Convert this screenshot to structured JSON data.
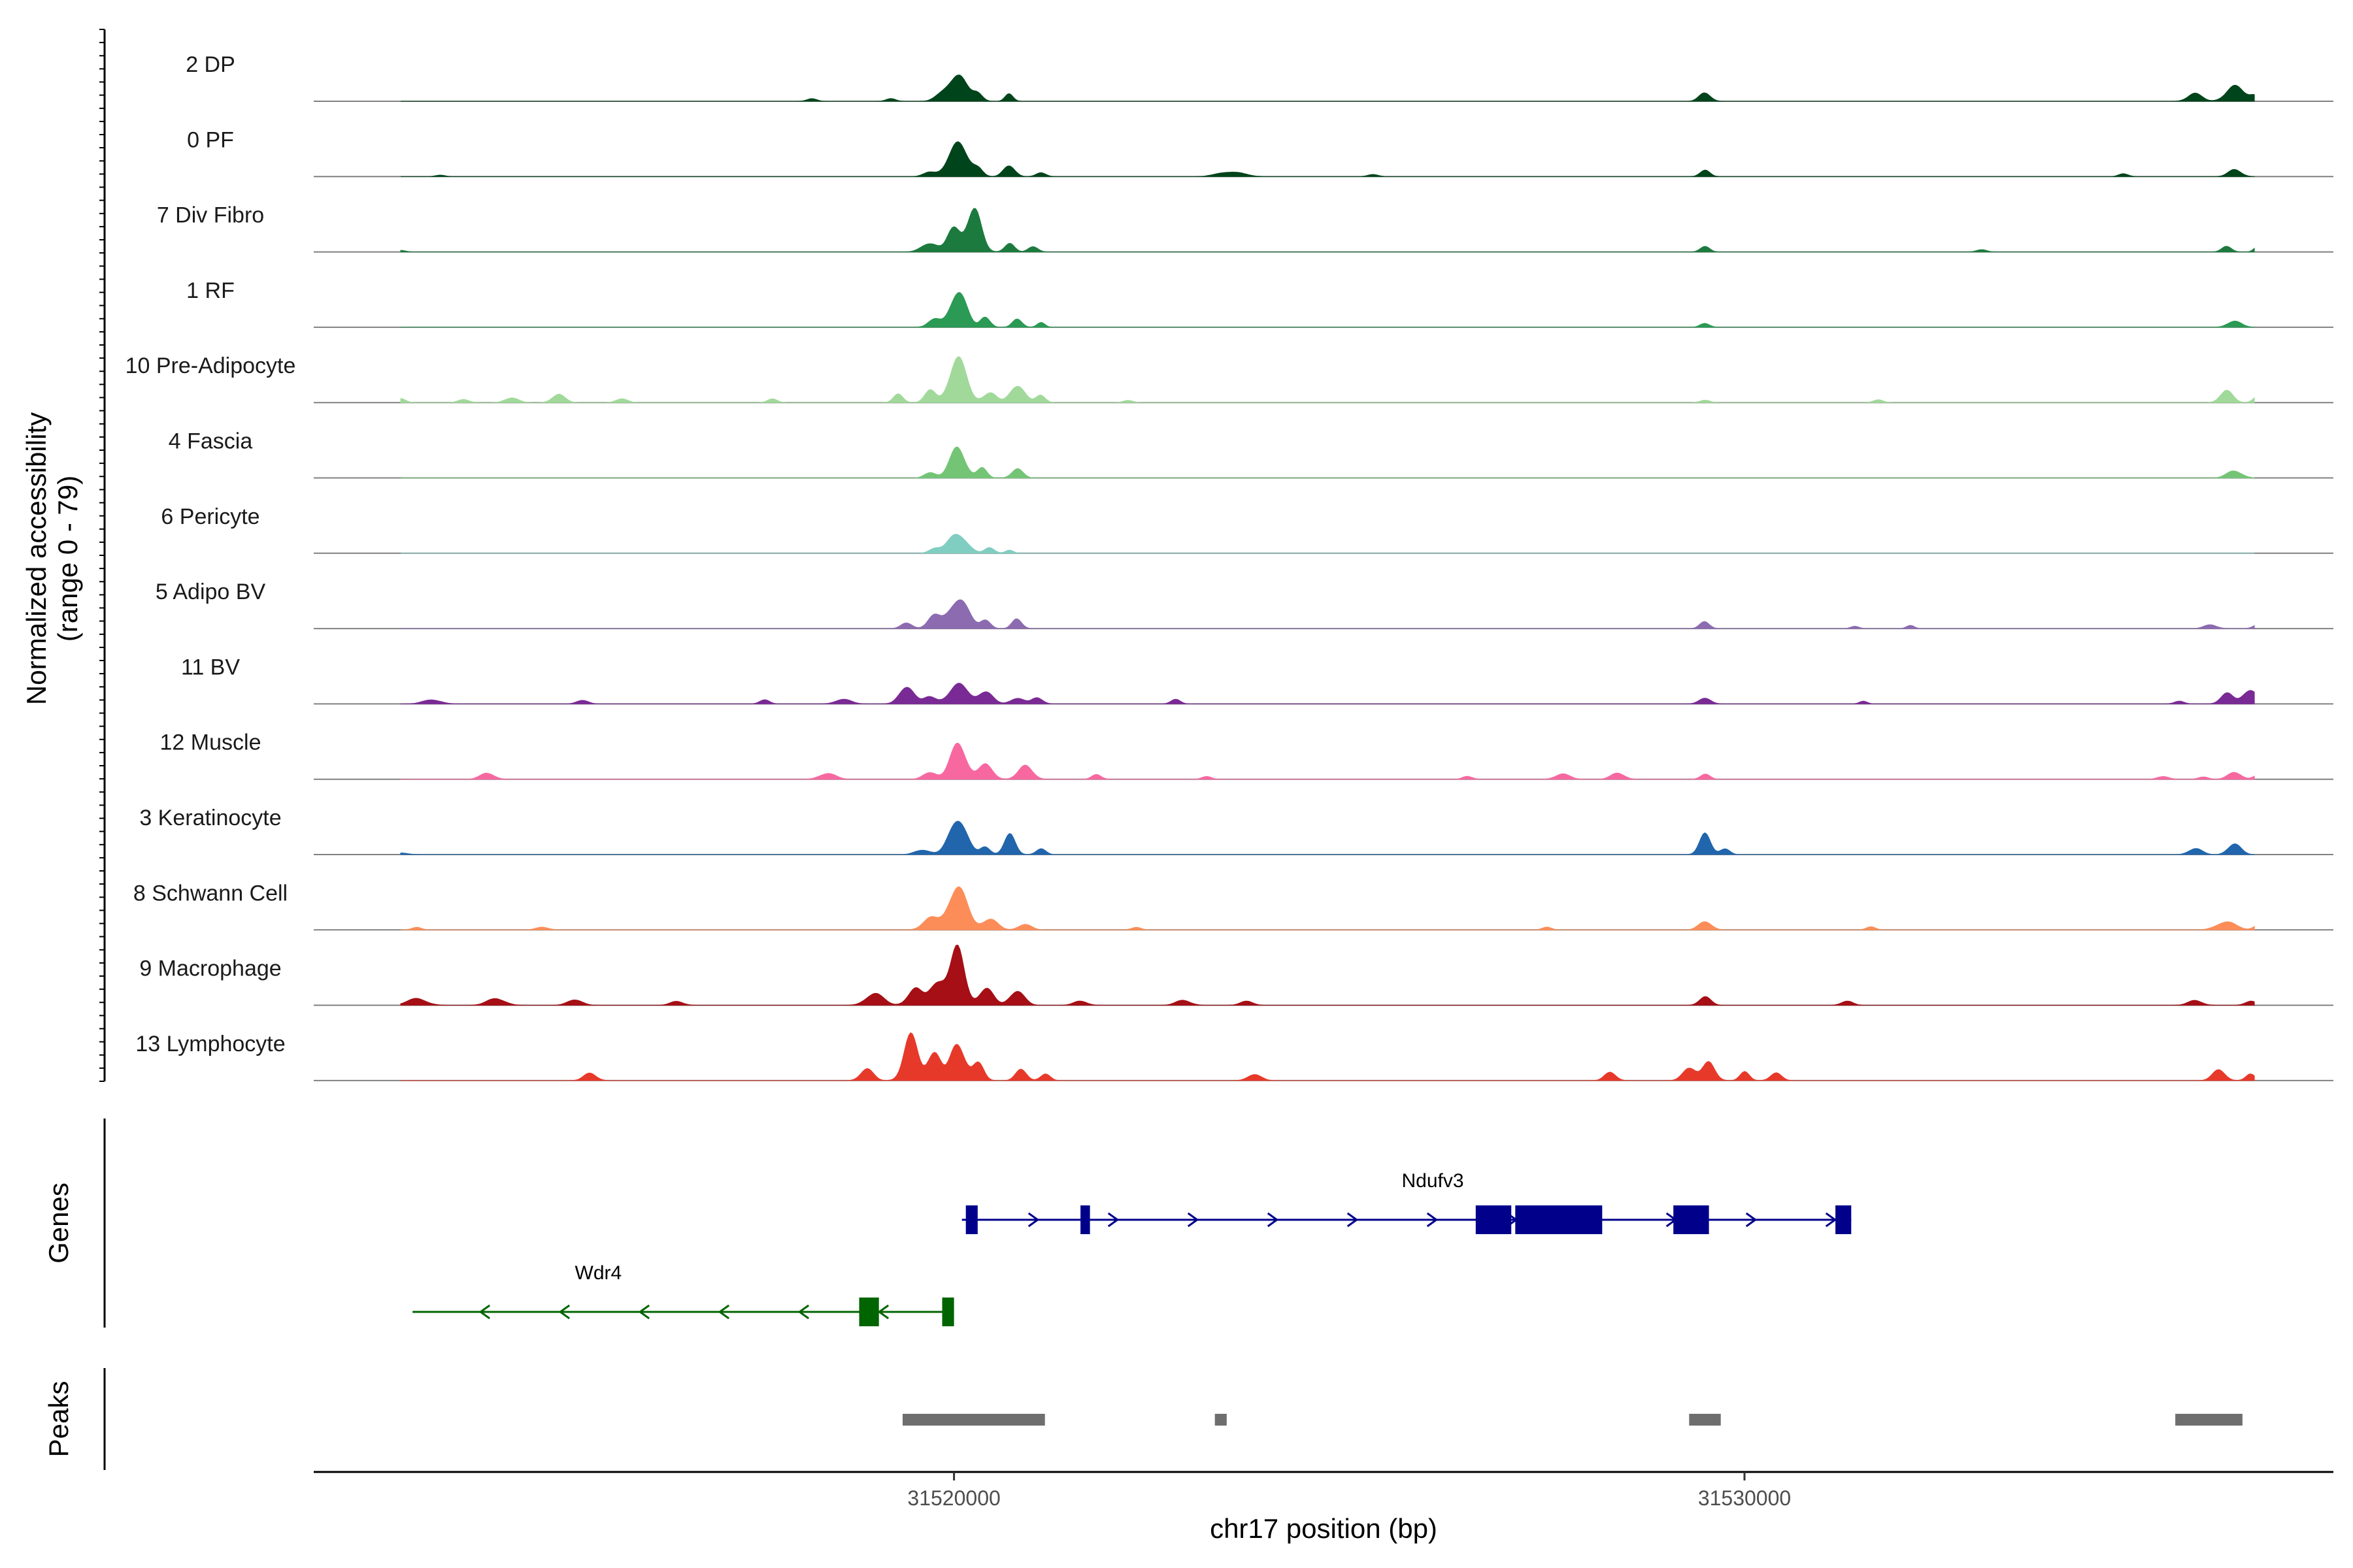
{
  "chart_data": {
    "type": "area",
    "title": "",
    "chromosome": "chr17",
    "xlabel": "chr17 position (bp)",
    "ylabel": "Normalized accessibility",
    "ylabel_range": "(range 0 - 79)",
    "yrange": [
      0,
      79
    ],
    "xlim": [
      31511900,
      31537450
    ],
    "x_ticks": [
      {
        "value": 31520000,
        "label": "31520000"
      },
      {
        "value": 31530000,
        "label": "31530000"
      }
    ],
    "gene_panel_label": "Genes",
    "peak_panel_label": "Peaks",
    "series": [
      {
        "name": "2 DP",
        "color": "#00441b",
        "peaks": [
          [
            31519850,
            4,
            90
          ],
          [
            31520050,
            20,
            110
          ],
          [
            31520300,
            6,
            60
          ],
          [
            31520700,
            5,
            50
          ],
          [
            31518200,
            2,
            60
          ],
          [
            31519200,
            2,
            60
          ],
          [
            31529500,
            6,
            70
          ],
          [
            31535700,
            5,
            90
          ],
          [
            31536200,
            11,
            110
          ],
          [
            31536450,
            4,
            60
          ]
        ]
      },
      {
        "name": "0 PF",
        "color": "#00441b",
        "peaks": [
          [
            31519700,
            3,
            80
          ],
          [
            31520050,
            25,
            120
          ],
          [
            31520700,
            9,
            70
          ],
          [
            31520300,
            5,
            60
          ],
          [
            31521100,
            3,
            60
          ],
          [
            31523500,
            4,
            150
          ],
          [
            31525300,
            2,
            60
          ],
          [
            31529500,
            5,
            60
          ],
          [
            31534800,
            2,
            60
          ],
          [
            31536200,
            5,
            80
          ],
          [
            31513500,
            1,
            60
          ]
        ]
      },
      {
        "name": "7 Div Fibro",
        "color": "#1c7a3e",
        "peaks": [
          [
            31519700,
            7,
            100
          ],
          [
            31520000,
            18,
            80
          ],
          [
            31520250,
            28,
            90
          ],
          [
            31520700,
            7,
            60
          ],
          [
            31521000,
            4,
            60
          ],
          [
            31529500,
            4,
            60
          ],
          [
            31533000,
            2,
            60
          ],
          [
            31536100,
            4,
            60
          ],
          [
            31536500,
            4,
            50
          ],
          [
            31513000,
            1,
            60
          ]
        ]
      },
      {
        "name": "1 RF",
        "color": "#2a9a54",
        "peaks": [
          [
            31519750,
            6,
            80
          ],
          [
            31520050,
            25,
            100
          ],
          [
            31520400,
            8,
            60
          ],
          [
            31520800,
            6,
            60
          ],
          [
            31521100,
            3,
            50
          ],
          [
            31529500,
            3,
            60
          ],
          [
            31536200,
            4,
            90
          ]
        ]
      },
      {
        "name": "10 Pre-Adipocyte",
        "color": "#a1d99b",
        "peaks": [
          [
            31513000,
            3,
            60
          ],
          [
            31513800,
            2,
            70
          ],
          [
            31514400,
            4,
            80
          ],
          [
            31515000,
            6,
            80
          ],
          [
            31515800,
            3,
            70
          ],
          [
            31517700,
            3,
            60
          ],
          [
            31519300,
            6,
            60
          ],
          [
            31519700,
            9,
            70
          ],
          [
            31520050,
            28,
            110
          ],
          [
            31520450,
            8,
            80
          ],
          [
            31520800,
            12,
            90
          ],
          [
            31521100,
            5,
            60
          ],
          [
            31522200,
            2,
            60
          ],
          [
            31529500,
            2,
            60
          ],
          [
            31531700,
            2,
            60
          ],
          [
            31536100,
            8,
            80
          ],
          [
            31536500,
            6,
            60
          ]
        ]
      },
      {
        "name": "4 Fascia",
        "color": "#74c476",
        "peaks": [
          [
            31519700,
            4,
            70
          ],
          [
            31520050,
            20,
            100
          ],
          [
            31520350,
            8,
            60
          ],
          [
            31520800,
            6,
            70
          ],
          [
            31536200,
            6,
            90
          ]
        ]
      },
      {
        "name": "6 Pericyte",
        "color": "#80cdc1",
        "peaks": [
          [
            31519750,
            3,
            70
          ],
          [
            31520050,
            16,
            110
          ],
          [
            31520450,
            4,
            60
          ],
          [
            31520700,
            2,
            50
          ]
        ]
      },
      {
        "name": "5 Adipo BV",
        "color": "#8c6bb1",
        "peaks": [
          [
            31519400,
            4,
            70
          ],
          [
            31519750,
            8,
            80
          ],
          [
            31520050,
            24,
            120
          ],
          [
            31520400,
            6,
            60
          ],
          [
            31520800,
            8,
            60
          ],
          [
            31529500,
            5,
            60
          ],
          [
            31531400,
            2,
            50
          ],
          [
            31532100,
            2,
            50
          ],
          [
            31535900,
            3,
            80
          ],
          [
            31536500,
            3,
            60
          ]
        ]
      },
      {
        "name": "11 BV",
        "color": "#7a2a95",
        "peaks": [
          [
            31513400,
            3,
            110
          ],
          [
            31515300,
            3,
            70
          ],
          [
            31517600,
            3,
            60
          ],
          [
            31518600,
            3,
            100
          ],
          [
            31519400,
            12,
            90
          ],
          [
            31519700,
            5,
            80
          ],
          [
            31520050,
            14,
            120
          ],
          [
            31520400,
            8,
            90
          ],
          [
            31520800,
            5,
            80
          ],
          [
            31521050,
            4,
            70
          ],
          [
            31522800,
            3,
            60
          ],
          [
            31529500,
            5,
            70
          ],
          [
            31531500,
            2,
            50
          ],
          [
            31535500,
            2,
            60
          ],
          [
            31536100,
            7,
            80
          ],
          [
            31536400,
            10,
            90
          ],
          [
            31536600,
            3,
            50
          ]
        ]
      },
      {
        "name": "12 Muscle",
        "color": "#f768a1",
        "peaks": [
          [
            31514100,
            4,
            90
          ],
          [
            31518400,
            4,
            100
          ],
          [
            31519700,
            6,
            80
          ],
          [
            31520050,
            24,
            100
          ],
          [
            31520400,
            10,
            90
          ],
          [
            31520900,
            9,
            90
          ],
          [
            31521800,
            3,
            60
          ],
          [
            31523200,
            2,
            60
          ],
          [
            31526500,
            2,
            60
          ],
          [
            31527700,
            4,
            90
          ],
          [
            31528400,
            5,
            80
          ],
          [
            31529500,
            4,
            60
          ],
          [
            31535300,
            2,
            70
          ],
          [
            31535800,
            2,
            60
          ],
          [
            31536200,
            5,
            80
          ],
          [
            31536500,
            3,
            60
          ]
        ]
      },
      {
        "name": "3 Keratinocyte",
        "color": "#2166ac",
        "peaks": [
          [
            31519600,
            4,
            90
          ],
          [
            31520050,
            24,
            110
          ],
          [
            31520400,
            6,
            60
          ],
          [
            31520700,
            14,
            70
          ],
          [
            31521100,
            4,
            60
          ],
          [
            31529500,
            15,
            70
          ],
          [
            31529750,
            4,
            60
          ],
          [
            31535700,
            5,
            80
          ],
          [
            31536200,
            8,
            80
          ],
          [
            31513000,
            1,
            100
          ]
        ]
      },
      {
        "name": "8 Schwann Cell",
        "color": "#fc8d59",
        "peaks": [
          [
            31513200,
            2,
            60
          ],
          [
            31514800,
            2,
            80
          ],
          [
            31519700,
            8,
            100
          ],
          [
            31520050,
            29,
            120
          ],
          [
            31520450,
            9,
            90
          ],
          [
            31520900,
            4,
            80
          ],
          [
            31522300,
            2,
            60
          ],
          [
            31527500,
            2,
            60
          ],
          [
            31529500,
            6,
            80
          ],
          [
            31531600,
            2,
            60
          ],
          [
            31536100,
            6,
            120
          ],
          [
            31536500,
            4,
            60
          ]
        ]
      },
      {
        "name": "9 Macrophage",
        "color": "#a50f15",
        "peaks": [
          [
            31513200,
            5,
            120
          ],
          [
            31514200,
            5,
            110
          ],
          [
            31515200,
            4,
            90
          ],
          [
            31516500,
            3,
            80
          ],
          [
            31519000,
            8,
            110
          ],
          [
            31519500,
            12,
            90
          ],
          [
            31519800,
            16,
            100
          ],
          [
            31520050,
            40,
            90
          ],
          [
            31520400,
            12,
            90
          ],
          [
            31520800,
            10,
            90
          ],
          [
            31521600,
            3,
            80
          ],
          [
            31522900,
            4,
            90
          ],
          [
            31523700,
            3,
            80
          ],
          [
            31529500,
            6,
            70
          ],
          [
            31531300,
            3,
            70
          ],
          [
            31535700,
            3,
            90
          ],
          [
            31536400,
            3,
            70
          ]
        ]
      },
      {
        "name": "13 Lymphocyte",
        "color": "#e7392a",
        "peaks": [
          [
            31515400,
            5,
            80
          ],
          [
            31518900,
            8,
            80
          ],
          [
            31519450,
            30,
            90
          ],
          [
            31519750,
            20,
            80
          ],
          [
            31520050,
            30,
            90
          ],
          [
            31520300,
            12,
            70
          ],
          [
            31520850,
            8,
            70
          ],
          [
            31521150,
            5,
            60
          ],
          [
            31523800,
            5,
            80
          ],
          [
            31528300,
            6,
            70
          ],
          [
            31529300,
            9,
            80
          ],
          [
            31529550,
            12,
            80
          ],
          [
            31530000,
            6,
            60
          ],
          [
            31530400,
            5,
            70
          ],
          [
            31536000,
            8,
            80
          ],
          [
            31536400,
            4,
            60
          ]
        ]
      }
    ],
    "genes": [
      {
        "name": "Ndufv3",
        "strand": "+",
        "color": "#00008b",
        "start": 31520100,
        "end": 31531350,
        "exons": [
          [
            31520150,
            31520300
          ],
          [
            31521600,
            31521720
          ],
          [
            31526600,
            31527050
          ],
          [
            31527100,
            31528200
          ],
          [
            31529100,
            31529550
          ],
          [
            31531150,
            31531350
          ]
        ]
      },
      {
        "name": "Wdr4",
        "strand": "-",
        "color": "#006400",
        "start": 31513150,
        "end": 31520000,
        "exons": [
          [
            31518800,
            31519050
          ],
          [
            31519850,
            31520000
          ]
        ]
      }
    ],
    "peaks_track": [
      [
        31519350,
        31521150
      ],
      [
        31523300,
        31523450
      ],
      [
        31529300,
        31529700
      ],
      [
        31535450,
        31536300
      ]
    ]
  }
}
